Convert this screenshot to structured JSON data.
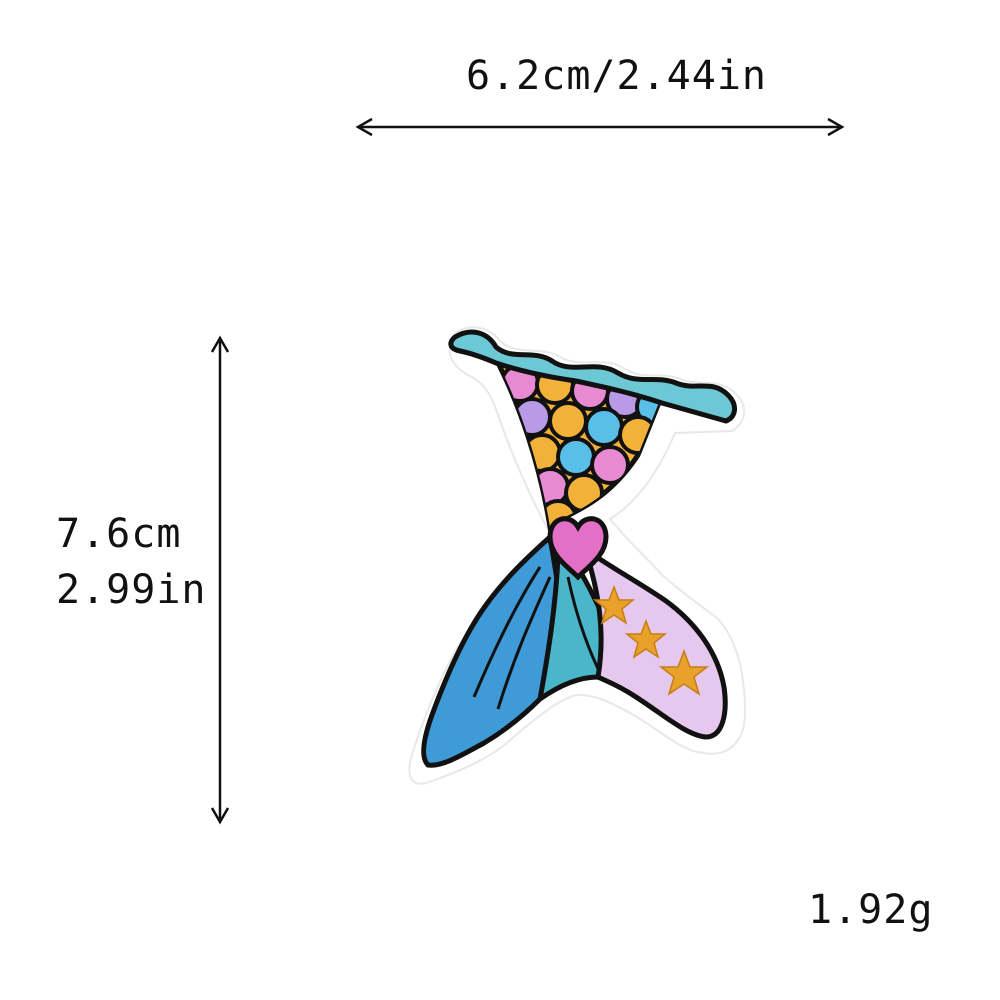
{
  "dimensions": {
    "width_label": "6.2cm/2.44in",
    "height_cm": "7.6cm",
    "height_in": "2.99in",
    "weight": "1.92g"
  },
  "illustration": {
    "subject": "mermaid-tail-patch-icon",
    "colors": {
      "outline": "#111111",
      "border": "#ffffff",
      "wave": "#6cc8d4",
      "scale_yellow": "#f2b23a",
      "scale_pink": "#e78ad2",
      "scale_purple": "#b99ae6",
      "scale_blue": "#59bfe8",
      "heart": "#e46fc6",
      "fin_left": "#3f9ad8",
      "fin_mid": "#4bb6c9",
      "fin_right": "#e6c8ef",
      "star": "#e8a22a"
    }
  }
}
